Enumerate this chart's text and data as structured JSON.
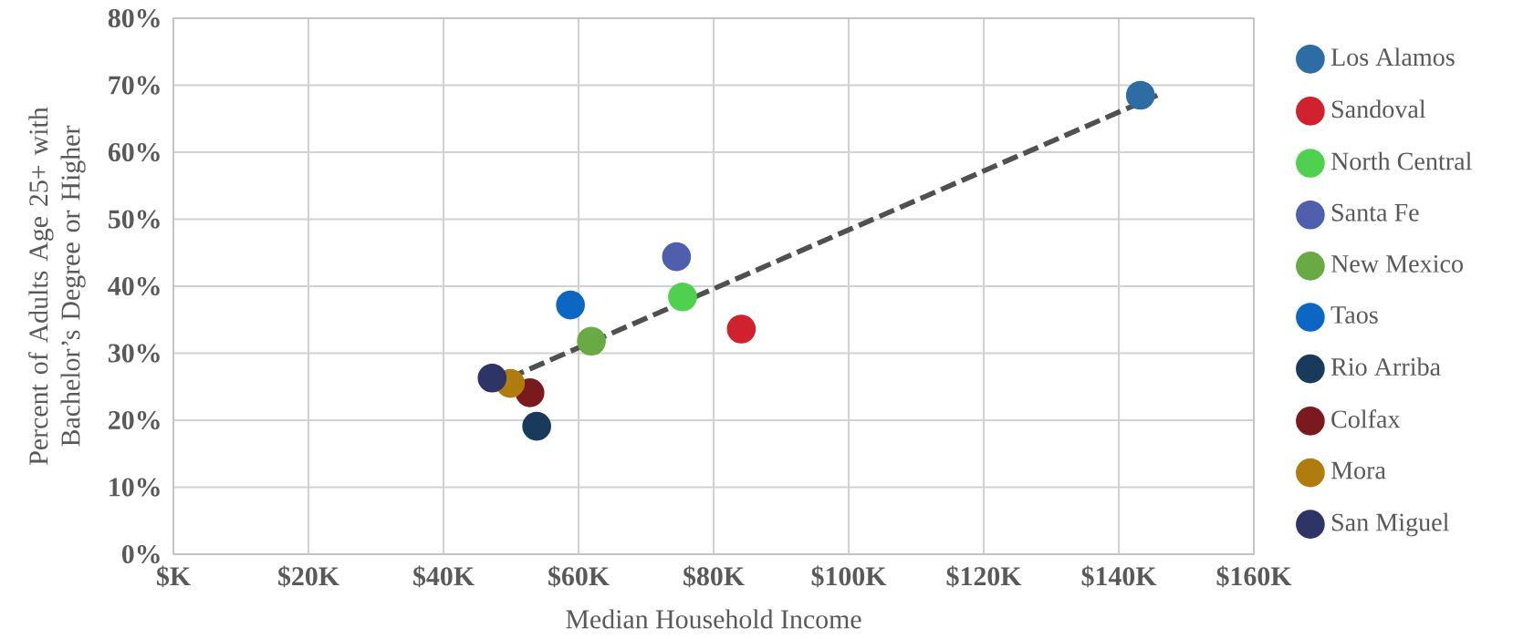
{
  "chart_data": {
    "type": "scatter",
    "xlabel": "Median Household Income",
    "ylabel": "Percent of Adults Age 25+ with Bachelor’s Degree or Higher",
    "xlim": [
      0,
      160000
    ],
    "xticks": [
      {
        "value": 0,
        "label": "$K"
      },
      {
        "value": 20000,
        "label": "$20K"
      },
      {
        "value": 40000,
        "label": "$40K"
      },
      {
        "value": 60000,
        "label": "$60K"
      },
      {
        "value": 80000,
        "label": "$80K"
      },
      {
        "value": 100000,
        "label": "$100K"
      },
      {
        "value": 120000,
        "label": "$120K"
      },
      {
        "value": 140000,
        "label": "$140K"
      },
      {
        "value": 160000,
        "label": "$160K"
      }
    ],
    "ylim": [
      0,
      80
    ],
    "yticks": [
      {
        "value": 0,
        "label": "0%"
      },
      {
        "value": 10,
        "label": "10%"
      },
      {
        "value": 20,
        "label": "20%"
      },
      {
        "value": 30,
        "label": "30%"
      },
      {
        "value": 40,
        "label": "40%"
      },
      {
        "value": 50,
        "label": "50%"
      },
      {
        "value": 60,
        "label": "60%"
      },
      {
        "value": 70,
        "label": "70%"
      },
      {
        "value": 80,
        "label": "80%"
      }
    ],
    "grid": true,
    "legend": "right",
    "marker": "circle",
    "series": [
      {
        "name": "Los Alamos",
        "color": "#2e6ca4",
        "x": [
          143200
        ],
        "values": [
          68.5
        ]
      },
      {
        "name": "Sandoval",
        "color": "#d0222e",
        "x": [
          84100
        ],
        "values": [
          33.6
        ]
      },
      {
        "name": "North Central",
        "color": "#4fd14f",
        "x": [
          75400
        ],
        "values": [
          38.4
        ]
      },
      {
        "name": "Santa Fe",
        "color": "#4f5fae",
        "x": [
          74500
        ],
        "values": [
          44.4
        ]
      },
      {
        "name": "New Mexico",
        "color": "#6aaa44",
        "x": [
          61900
        ],
        "values": [
          31.8
        ]
      },
      {
        "name": "Taos",
        "color": "#0b66c4",
        "x": [
          58800
        ],
        "values": [
          37.2
        ]
      },
      {
        "name": "Rio Arriba",
        "color": "#1a3a5c",
        "x": [
          53800
        ],
        "values": [
          19.1
        ]
      },
      {
        "name": "Colfax",
        "color": "#7a1a1e",
        "x": [
          52800
        ],
        "values": [
          24.1
        ]
      },
      {
        "name": "Mora",
        "color": "#b07c10",
        "x": [
          49900
        ],
        "values": [
          25.5
        ]
      },
      {
        "name": "San Miguel",
        "color": "#2e3466",
        "x": [
          47200
        ],
        "values": [
          26.3
        ]
      },
      {
        "type": "line",
        "color": "#505050",
        "line_style": "dashed",
        "marker": "none",
        "x": [
          49700,
          145700
        ],
        "values": [
          26.3,
          68.5
        ]
      }
    ]
  }
}
